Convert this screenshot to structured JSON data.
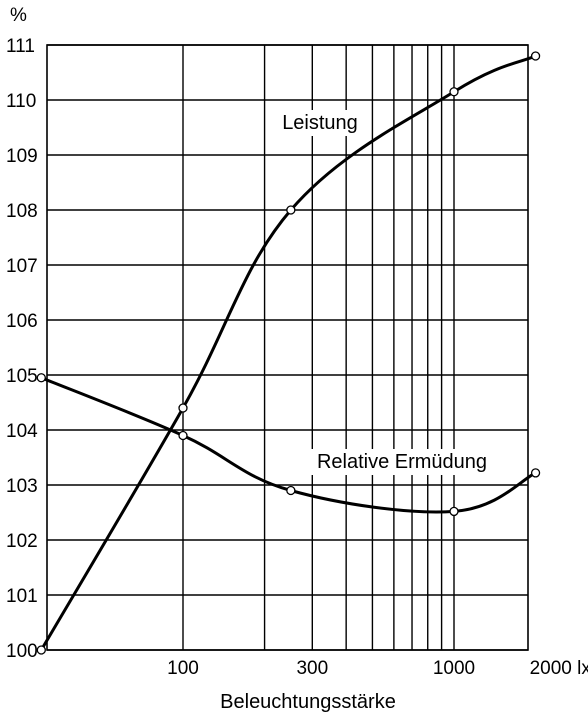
{
  "chart_data": {
    "type": "line",
    "x_scale": "log",
    "xlabel": "Beleuchtungsstärke",
    "ylabel": "%",
    "ylim": [
      100,
      111
    ],
    "xlim": [
      30,
      2000
    ],
    "y_ticks": [
      "100",
      "101",
      "102",
      "103",
      "104",
      "105",
      "106",
      "107",
      "108",
      "109",
      "110",
      "111"
    ],
    "x_tick_labels": [
      {
        "x": 100,
        "label": "100"
      },
      {
        "x": 300,
        "label": "300"
      },
      {
        "x": 1000,
        "label": "1000"
      },
      {
        "x": 2000,
        "label": "2000 lx"
      }
    ],
    "x_gridlines": [
      100,
      200,
      300,
      400,
      500,
      600,
      700,
      800,
      900,
      1000
    ],
    "grid": true,
    "series": [
      {
        "name": "Leistung",
        "points": [
          [
            30,
            100.0
          ],
          [
            100,
            104.4
          ],
          [
            250,
            108.0
          ],
          [
            1000,
            110.15
          ],
          [
            2000,
            110.8
          ]
        ]
      },
      {
        "name": "Relative Ermüdung",
        "points": [
          [
            30,
            104.95
          ],
          [
            100,
            103.9
          ],
          [
            250,
            102.9
          ],
          [
            1000,
            102.52
          ],
          [
            2000,
            103.22
          ]
        ]
      }
    ]
  },
  "colors": {
    "line": "#000000",
    "grid": "#000000",
    "marker_fill": "#ffffff"
  }
}
